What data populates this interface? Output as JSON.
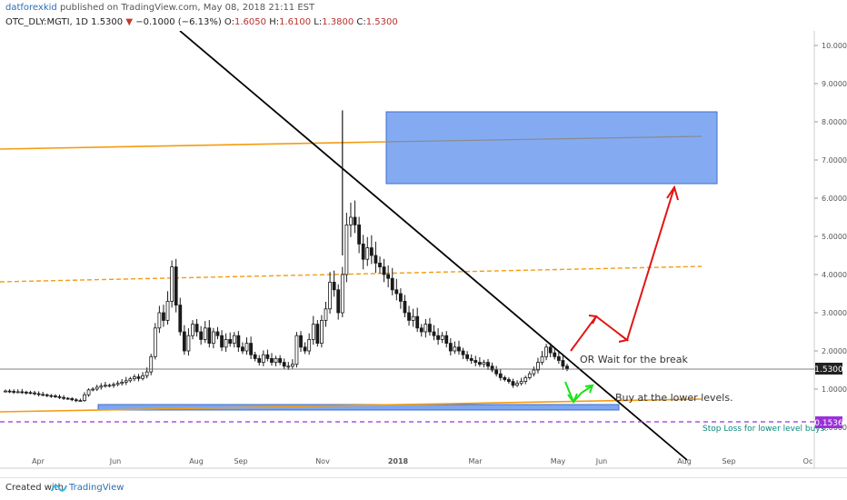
{
  "header": {
    "author": "datforexkid",
    "published": "published on TradingView.com, May 08, 2018 21:11 EST",
    "symbol": "OTC_DLY:MGTI, 1D",
    "last": "1.5300",
    "change": "−0.1000 (−6.13%)",
    "o_label": "O:",
    "o_val": "1.6050",
    "h_label": "H:",
    "h_val": "1.6100",
    "l_label": "L:",
    "l_val": "1.3800",
    "c_label": "C:",
    "c_val": "1.5300"
  },
  "footer": {
    "created_with": "Created with",
    "brand": "TradingView"
  },
  "colors": {
    "up": "#1a1a1a",
    "down": "#1a1a1a",
    "zone_fill": "#6e9cf0",
    "orange": "#f39c12",
    "trendline": "#000000",
    "stop_line": "#9b30d9",
    "arrow_red": "#e31414",
    "arrow_green": "#19e319"
  },
  "chart_data": {
    "type": "candlestick",
    "y_axis": {
      "scale": "log",
      "ticks": [
        "10.0000",
        "9.0000",
        "8.0000",
        "7.0000",
        "6.0000",
        "5.0000",
        "4.0000",
        "3.0000",
        "2.0000",
        "1.0000",
        "0.0000"
      ],
      "last_price_label": "1.5300",
      "stop_label": "0.1536"
    },
    "x_axis": {
      "ticks": [
        "Apr",
        "Jun",
        "Aug",
        "Sep",
        "Nov",
        "2018",
        "Mar",
        "May",
        "Jun",
        "Aug",
        "Sep",
        "Oc"
      ]
    },
    "last_price": 1.53,
    "stop_level": 0.1536,
    "annotations": {
      "wait_break": "OR Wait for the break",
      "buy_lower": "Buy at the lower levels.",
      "stop_loss": "Stop Loss for lower level buys."
    },
    "zones": [
      {
        "name": "upper-target-zone",
        "from_price": 6.4,
        "to_price": 8.3
      },
      {
        "name": "lower-support-zone",
        "from_price": 0.55,
        "to_price": 0.68
      }
    ],
    "closes": [
      0.95,
      0.94,
      0.93,
      0.93,
      0.92,
      0.91,
      0.9,
      0.88,
      0.86,
      0.85,
      0.83,
      0.82,
      0.8,
      0.78,
      0.76,
      0.75,
      0.72,
      0.7,
      0.7,
      0.85,
      0.98,
      1.0,
      1.05,
      1.08,
      1.1,
      1.1,
      1.12,
      1.15,
      1.18,
      1.22,
      1.27,
      1.32,
      1.28,
      1.35,
      1.45,
      1.85,
      2.6,
      3.0,
      2.8,
      3.3,
      4.2,
      3.2,
      2.5,
      2.0,
      2.4,
      2.7,
      2.5,
      2.3,
      2.6,
      2.2,
      2.5,
      2.4,
      2.1,
      2.3,
      2.2,
      2.4,
      2.1,
      2.0,
      2.2,
      1.9,
      1.8,
      1.7,
      1.9,
      1.8,
      1.7,
      1.8,
      1.7,
      1.6,
      1.6,
      1.65,
      2.4,
      2.1,
      2.0,
      2.3,
      2.7,
      2.2,
      2.8,
      3.1,
      3.8,
      3.6,
      3.0,
      4.0,
      5.3,
      5.5,
      5.3,
      4.8,
      4.4,
      4.7,
      4.5,
      4.3,
      4.2,
      4.0,
      3.9,
      3.6,
      3.5,
      3.3,
      3.0,
      2.8,
      2.9,
      2.6,
      2.5,
      2.7,
      2.5,
      2.4,
      2.3,
      2.4,
      2.2,
      2.0,
      2.1,
      2.0,
      1.9,
      1.8,
      1.75,
      1.7,
      1.65,
      1.7,
      1.6,
      1.5,
      1.4,
      1.3,
      1.25,
      1.2,
      1.1,
      1.15,
      1.2,
      1.3,
      1.4,
      1.5,
      1.7,
      1.85,
      2.1,
      1.95,
      1.85,
      1.75,
      1.6,
      1.53
    ]
  }
}
